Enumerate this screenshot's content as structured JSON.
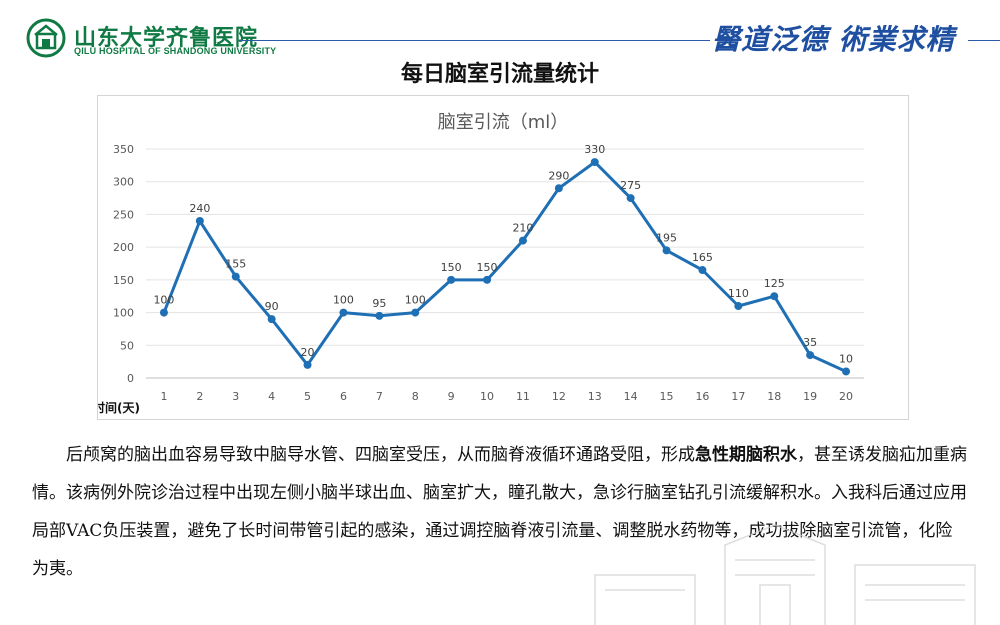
{
  "header": {
    "hospital_name": "山东大学齐鲁医院",
    "hospital_name_en": "QILU HOSPITAL OF SHANDONG UNIVERSITY",
    "motto": "醫道泛德 術業求精"
  },
  "page_title": "每日脑室引流量统计",
  "chart_data": {
    "type": "line",
    "title": "脑室引流（ml）",
    "xlabel": "时间(天)",
    "ylabel": "",
    "categories": [
      "1",
      "2",
      "3",
      "4",
      "5",
      "6",
      "7",
      "8",
      "9",
      "10",
      "11",
      "12",
      "13",
      "14",
      "15",
      "16",
      "17",
      "18",
      "19",
      "20"
    ],
    "values": [
      100,
      240,
      155,
      90,
      20,
      100,
      95,
      100,
      150,
      150,
      210,
      290,
      330,
      275,
      195,
      165,
      110,
      125,
      35,
      10
    ],
    "ylim": [
      0,
      350
    ],
    "yticks": [
      0,
      50,
      100,
      150,
      200,
      250,
      300,
      350
    ],
    "grid": true,
    "legend": "none",
    "line_color": "#1f6fb5"
  },
  "paragraph": {
    "seg1": "后颅窝的脑出血容易导致中脑导水管、四脑室受压，从而脑脊液循环通路受阻，形成",
    "seg2_bold": "急性期脑积水",
    "seg3": "，甚至诱发脑疝加重病情。该病例外院诊治过程中出现左侧小脑半球出血、脑室扩大，瞳孔散大，急诊行脑室钻孔引流缓解积水。入我科后通过应用局部VAC负压装置，避免了长时间带管引起的感染，通过调控脑脊液引流量、调整脱水药物等，成功拔除脑室引流管，化险为夷。"
  },
  "colors": {
    "brand_green": "#0f7a43",
    "motto_blue": "#1f4fa0",
    "line_blue": "#1f6fb5"
  }
}
